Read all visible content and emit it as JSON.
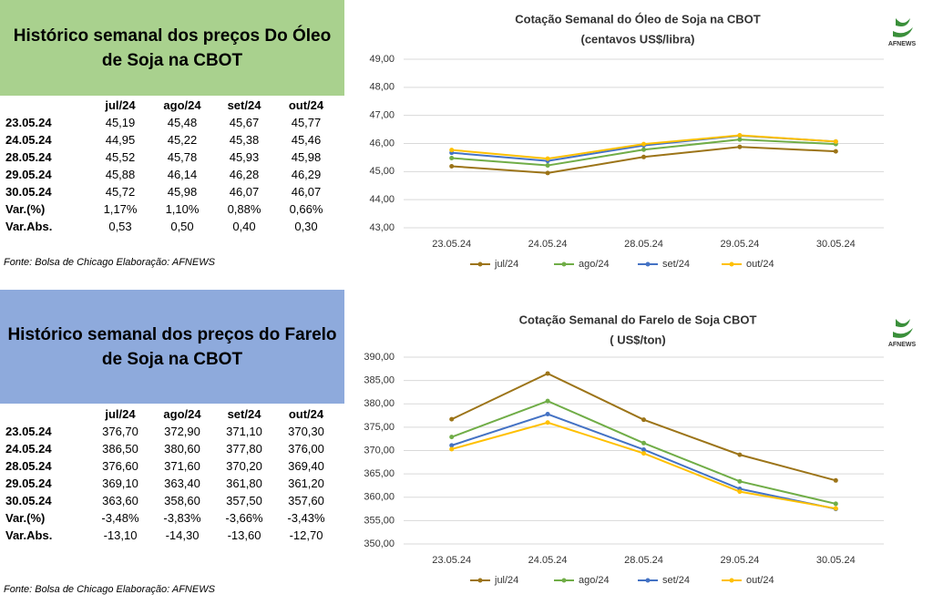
{
  "tables": [
    {
      "title": "Histórico semanal dos preços Do Óleo de Soja na CBOT",
      "columns": [
        "jul/24",
        "ago/24",
        "set/24",
        "out/24"
      ],
      "rows": [
        {
          "label": "23.05.24",
          "cells": [
            "45,19",
            "45,48",
            "45,67",
            "45,77"
          ]
        },
        {
          "label": "24.05.24",
          "cells": [
            "44,95",
            "45,22",
            "45,38",
            "45,46"
          ]
        },
        {
          "label": "28.05.24",
          "cells": [
            "45,52",
            "45,78",
            "45,93",
            "45,98"
          ]
        },
        {
          "label": "29.05.24",
          "cells": [
            "45,88",
            "46,14",
            "46,28",
            "46,29"
          ]
        },
        {
          "label": "30.05.24",
          "cells": [
            "45,72",
            "45,98",
            "46,07",
            "46,07"
          ]
        },
        {
          "label": "Var.(%)",
          "cells": [
            "1,17%",
            "1,10%",
            "0,88%",
            "0,66%"
          ]
        },
        {
          "label": "Var.Abs.",
          "cells": [
            "0,53",
            "0,50",
            "0,40",
            "0,30"
          ]
        }
      ],
      "source": "Fonte: Bolsa de Chicago Elaboração: AFNEWS"
    },
    {
      "title": "Histórico semanal dos preços do Farelo de Soja na CBOT",
      "columns": [
        "jul/24",
        "ago/24",
        "set/24",
        "out/24"
      ],
      "rows": [
        {
          "label": "23.05.24",
          "cells": [
            "376,70",
            "372,90",
            "371,10",
            "370,30"
          ]
        },
        {
          "label": "24.05.24",
          "cells": [
            "386,50",
            "380,60",
            "377,80",
            "376,00"
          ]
        },
        {
          "label": "28.05.24",
          "cells": [
            "376,60",
            "371,60",
            "370,20",
            "369,40"
          ]
        },
        {
          "label": "29.05.24",
          "cells": [
            "369,10",
            "363,40",
            "361,80",
            "361,20"
          ]
        },
        {
          "label": "30.05.24",
          "cells": [
            "363,60",
            "358,60",
            "357,50",
            "357,60"
          ]
        },
        {
          "label": "Var.(%)",
          "cells": [
            "-3,48%",
            "-3,83%",
            "-3,66%",
            "-3,43%"
          ]
        },
        {
          "label": "Var.Abs.",
          "cells": [
            "-13,10",
            "-14,30",
            "-13,60",
            "-12,70"
          ]
        }
      ],
      "source": "Fonte: Bolsa de Chicago Elaboração: AFNEWS"
    }
  ],
  "chart_data": [
    {
      "type": "line",
      "title": "Cotação Semanal do Óleo de Soja na CBOT",
      "subtitle": "(centavos US$/libra)",
      "logo": "AFNEWS",
      "categories": [
        "23.05.24",
        "24.05.24",
        "28.05.24",
        "29.05.24",
        "30.05.24"
      ],
      "series": [
        {
          "name": "jul/24",
          "color": "#9c7418",
          "values": [
            45.19,
            44.95,
            45.52,
            45.88,
            45.72
          ]
        },
        {
          "name": "ago/24",
          "color": "#70ad47",
          "values": [
            45.48,
            45.22,
            45.78,
            46.14,
            45.98
          ]
        },
        {
          "name": "set/24",
          "color": "#4472c4",
          "values": [
            45.67,
            45.38,
            45.93,
            46.28,
            46.07
          ]
        },
        {
          "name": "out/24",
          "color": "#ffc000",
          "values": [
            45.77,
            45.46,
            45.98,
            46.29,
            46.07
          ]
        }
      ],
      "ylim": [
        43,
        49
      ],
      "yticks": [
        {
          "value": 43,
          "label": "43,00"
        },
        {
          "value": 44,
          "label": "44,00"
        },
        {
          "value": 45,
          "label": "45,00"
        },
        {
          "value": 46,
          "label": "46,00"
        },
        {
          "value": 47,
          "label": "47,00"
        },
        {
          "value": 48,
          "label": "48,00"
        },
        {
          "value": 49,
          "label": "49,00"
        }
      ],
      "grid": true,
      "legend": "bottom"
    },
    {
      "type": "line",
      "title": "Cotação Semanal do Farelo de Soja CBOT",
      "subtitle": "( US$/ton)",
      "logo": "AFNEWS",
      "categories": [
        "23.05.24",
        "24.05.24",
        "28.05.24",
        "29.05.24",
        "30.05.24"
      ],
      "series": [
        {
          "name": "jul/24",
          "color": "#9c7418",
          "values": [
            376.7,
            386.5,
            376.6,
            369.1,
            363.6
          ]
        },
        {
          "name": "ago/24",
          "color": "#70ad47",
          "values": [
            372.9,
            380.6,
            371.6,
            363.4,
            358.6
          ]
        },
        {
          "name": "set/24",
          "color": "#4472c4",
          "values": [
            371.1,
            377.8,
            370.2,
            361.8,
            357.5
          ]
        },
        {
          "name": "out/24",
          "color": "#ffc000",
          "values": [
            370.3,
            376.0,
            369.4,
            361.2,
            357.6
          ]
        }
      ],
      "ylim": [
        350,
        390
      ],
      "yticks": [
        {
          "value": 350,
          "label": "350,00"
        },
        {
          "value": 355,
          "label": "355,00"
        },
        {
          "value": 360,
          "label": "360,00"
        },
        {
          "value": 365,
          "label": "365,00"
        },
        {
          "value": 370,
          "label": "370,00"
        },
        {
          "value": 375,
          "label": "375,00"
        },
        {
          "value": 380,
          "label": "380,00"
        },
        {
          "value": 385,
          "label": "385,00"
        },
        {
          "value": 390,
          "label": "390,00"
        }
      ],
      "grid": true,
      "legend": "bottom"
    }
  ]
}
